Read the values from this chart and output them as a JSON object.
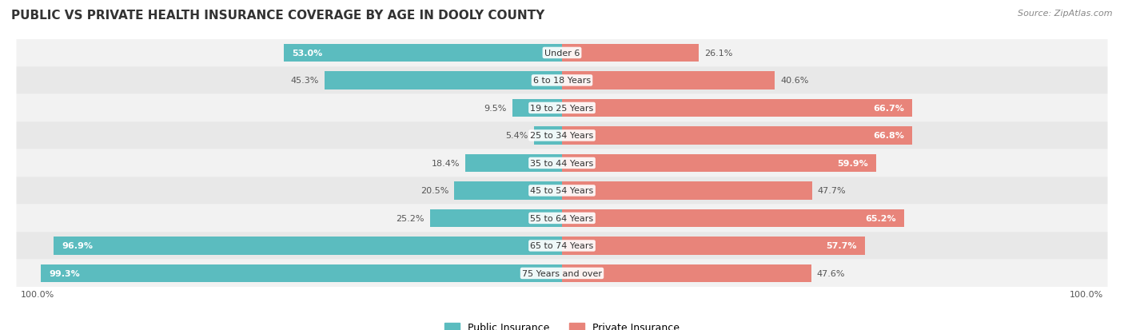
{
  "title": "PUBLIC VS PRIVATE HEALTH INSURANCE COVERAGE BY AGE IN DOOLY COUNTY",
  "source": "Source: ZipAtlas.com",
  "categories": [
    "Under 6",
    "6 to 18 Years",
    "19 to 25 Years",
    "25 to 34 Years",
    "35 to 44 Years",
    "45 to 54 Years",
    "55 to 64 Years",
    "65 to 74 Years",
    "75 Years and over"
  ],
  "public_values": [
    53.0,
    45.3,
    9.5,
    5.4,
    18.4,
    20.5,
    25.2,
    96.9,
    99.3
  ],
  "private_values": [
    26.1,
    40.6,
    66.7,
    66.8,
    59.9,
    47.7,
    65.2,
    57.7,
    47.6
  ],
  "public_color": "#5bbcbf",
  "private_color": "#e8847a",
  "row_bg_color_even": "#f2f2f2",
  "row_bg_color_odd": "#e8e8e8",
  "max_value": 100.0,
  "title_fontsize": 11,
  "label_fontsize": 8,
  "tick_fontsize": 8,
  "legend_fontsize": 9,
  "source_fontsize": 8,
  "inside_label_threshold_pub": 50,
  "inside_label_threshold_priv": 55
}
